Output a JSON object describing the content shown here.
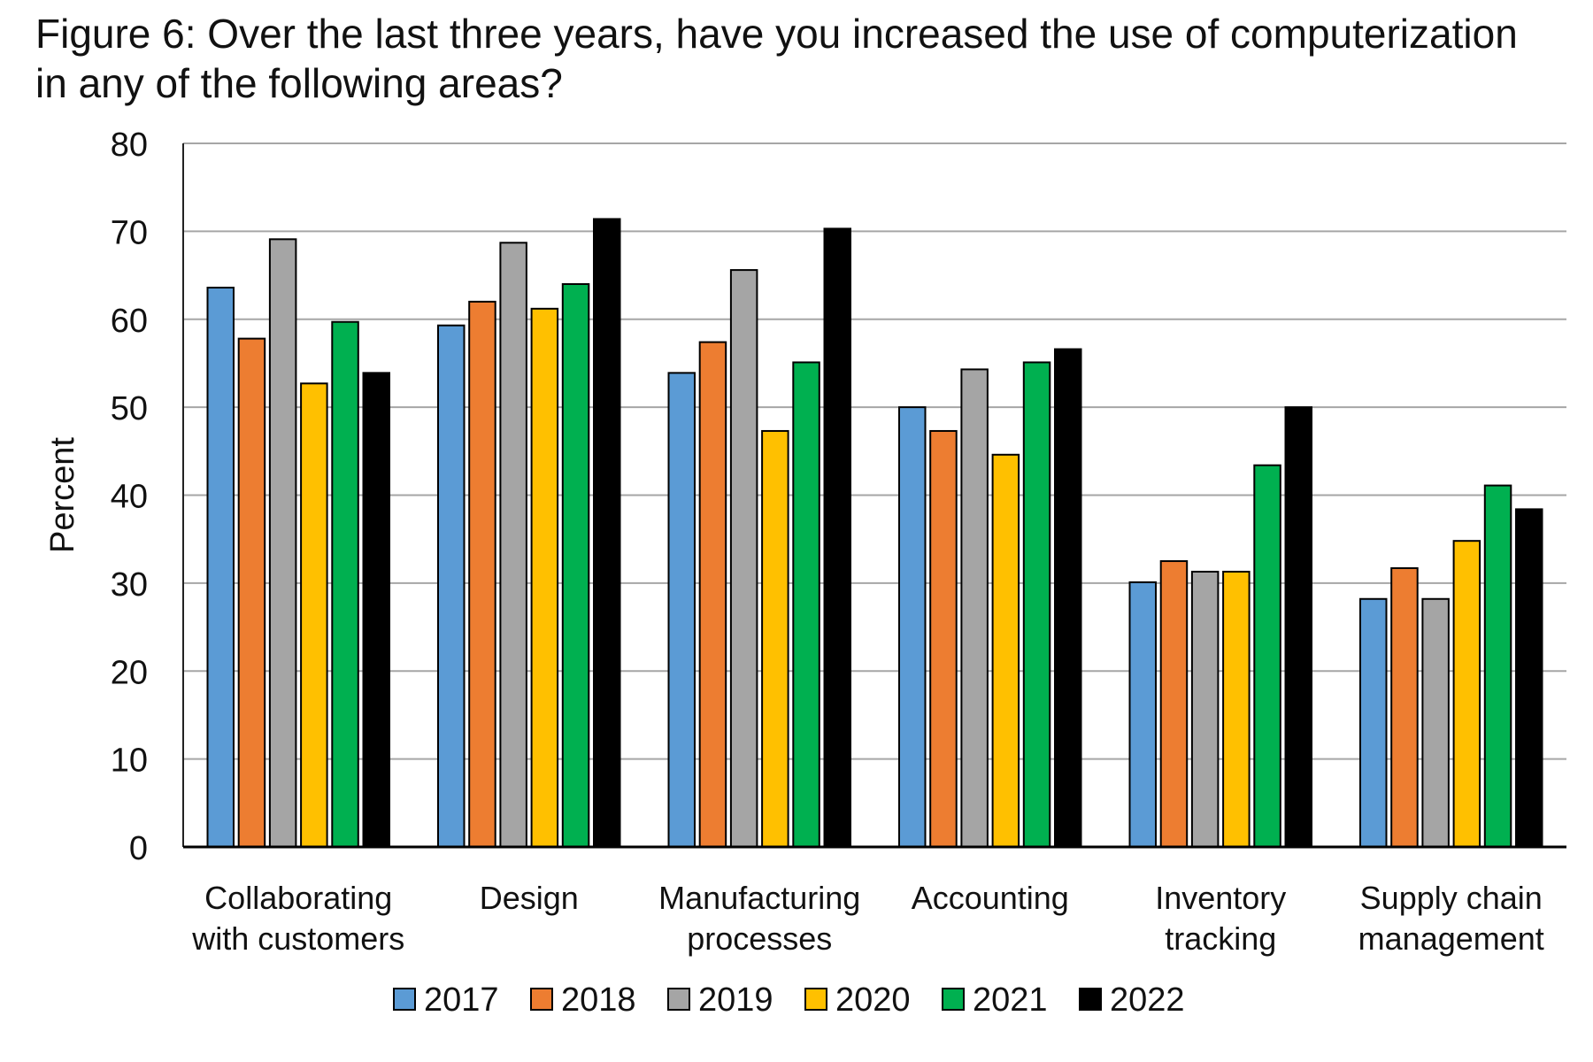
{
  "chart_data": {
    "type": "bar",
    "title": "Figure 6: Over the last three years, have you increased the use of computerization in any of the following areas?",
    "xlabel": "",
    "ylabel": "Percent",
    "ylim": [
      0,
      80
    ],
    "yticks": [
      0,
      10,
      20,
      30,
      40,
      50,
      60,
      70,
      80
    ],
    "grid": true,
    "legend_position": "bottom",
    "categories": [
      [
        "Collaborating",
        "with customers"
      ],
      [
        "Design"
      ],
      [
        "Manufacturing",
        "processes"
      ],
      [
        "Accounting"
      ],
      [
        "Inventory",
        "tracking"
      ],
      [
        "Supply chain",
        "management"
      ]
    ],
    "series": [
      {
        "name": "2017",
        "color": "#5B9BD5",
        "values": [
          63.6,
          59.3,
          53.9,
          50.0,
          30.1,
          28.2
        ]
      },
      {
        "name": "2018",
        "color": "#ED7D31",
        "values": [
          57.8,
          62.0,
          57.4,
          47.3,
          32.5,
          31.7
        ]
      },
      {
        "name": "2019",
        "color": "#A5A5A5",
        "values": [
          69.1,
          68.7,
          65.6,
          54.3,
          31.3,
          28.2
        ]
      },
      {
        "name": "2020",
        "color": "#FFC000",
        "values": [
          52.7,
          61.2,
          47.3,
          44.6,
          31.3,
          34.8
        ]
      },
      {
        "name": "2021",
        "color": "#00B050",
        "values": [
          59.7,
          64.0,
          55.1,
          55.1,
          43.4,
          41.1
        ]
      },
      {
        "name": "2022",
        "color": "#000000",
        "values": [
          53.9,
          71.4,
          70.3,
          56.6,
          50.0,
          38.4
        ]
      }
    ]
  }
}
